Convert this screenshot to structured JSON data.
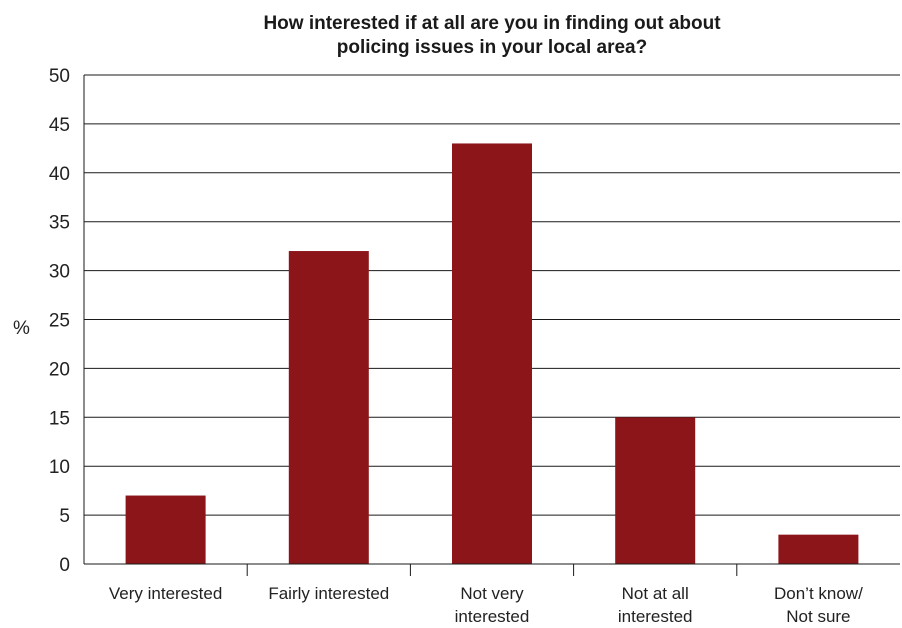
{
  "chart_data": {
    "type": "bar",
    "title_lines": [
      "How interested if at all are you in finding out about",
      "policing issues in your local area?"
    ],
    "ylabel": "%",
    "xlabel": "",
    "ylim": [
      0,
      50
    ],
    "yticks": [
      0,
      5,
      10,
      15,
      20,
      25,
      30,
      35,
      40,
      45,
      50
    ],
    "grid": true,
    "categories": [
      [
        "Very interested"
      ],
      [
        "Fairly interested"
      ],
      [
        "Not very",
        "interested"
      ],
      [
        "Not at all",
        "interested"
      ],
      [
        "Don’t know/",
        "Not sure"
      ]
    ],
    "values": [
      7,
      32,
      43,
      15,
      3
    ],
    "bar_color": "#8b1519"
  }
}
